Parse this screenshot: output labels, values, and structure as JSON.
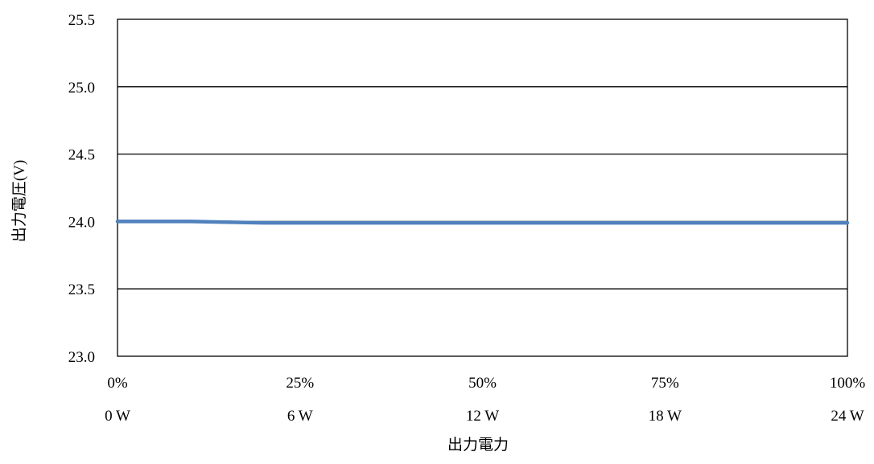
{
  "chart_data": {
    "type": "line",
    "title": "",
    "xlabel": "出力電力",
    "ylabel": "出力電圧(V)",
    "ylim": [
      23.0,
      25.5
    ],
    "yticks": [
      "23.0",
      "23.5",
      "24.0",
      "24.5",
      "25.0",
      "25.5"
    ],
    "xlim": [
      0,
      100
    ],
    "x_categories": [
      {
        "percent": "0%",
        "watts": "0 W"
      },
      {
        "percent": "25%",
        "watts": "6 W"
      },
      {
        "percent": "50%",
        "watts": "12 W"
      },
      {
        "percent": "75%",
        "watts": "18 W"
      },
      {
        "percent": "100%",
        "watts": "24 W"
      }
    ],
    "grid": true,
    "legend": "none",
    "series": [
      {
        "color": "#4f81bd",
        "x": [
          0,
          10,
          20,
          30,
          40,
          50,
          60,
          70,
          80,
          90,
          100
        ],
        "y": [
          24.0,
          24.0,
          23.99,
          23.99,
          23.99,
          23.99,
          23.99,
          23.99,
          23.99,
          23.99,
          23.99
        ]
      }
    ]
  }
}
